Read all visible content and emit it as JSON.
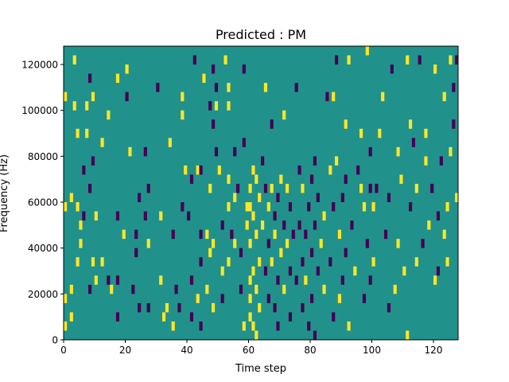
{
  "chart_data": {
    "type": "heatmap",
    "title": "Predicted : PM",
    "xlabel": "Time step",
    "ylabel": "Frequency (Hz)",
    "xlim": [
      0,
      128
    ],
    "ylim": [
      0,
      128000
    ],
    "x_ticks": [
      0,
      20,
      40,
      60,
      80,
      100,
      120
    ],
    "y_ticks": [
      0,
      20000,
      40000,
      60000,
      80000,
      100000,
      120000
    ],
    "x_tick_labels": [
      "0",
      "20",
      "40",
      "60",
      "80",
      "100",
      "120"
    ],
    "y_tick_labels": [
      "0",
      "20000",
      "40000",
      "60000",
      "80000",
      "100000",
      "120000"
    ],
    "grid": false,
    "legend": "none",
    "levels": [
      -1,
      0,
      1
    ],
    "colors": {
      "-1": "#440154",
      "0": "#21918c",
      "1": "#fde725"
    },
    "background_value": 0,
    "cell_height": 4000,
    "cells": [
      {
        "x": 0,
        "y": 4000,
        "v": 1
      },
      {
        "x": 0,
        "y": 16000,
        "v": 1
      },
      {
        "x": 0,
        "y": 56000,
        "v": 1
      },
      {
        "x": 0,
        "y": 104000,
        "v": 1
      },
      {
        "x": 2,
        "y": 8000,
        "v": 1
      },
      {
        "x": 2,
        "y": 20000,
        "v": 1
      },
      {
        "x": 2,
        "y": 60000,
        "v": 1
      },
      {
        "x": 3,
        "y": 120000,
        "v": 1
      },
      {
        "x": 3,
        "y": 100000,
        "v": 1
      },
      {
        "x": 4,
        "y": 32000,
        "v": 1
      },
      {
        "x": 4,
        "y": 88000,
        "v": 1
      },
      {
        "x": 4,
        "y": 56000,
        "v": 1
      },
      {
        "x": 5,
        "y": 48000,
        "v": 1
      },
      {
        "x": 5,
        "y": 40000,
        "v": 1
      },
      {
        "x": 6,
        "y": 72000,
        "v": -1
      },
      {
        "x": 6,
        "y": 52000,
        "v": -1
      },
      {
        "x": 7,
        "y": 100000,
        "v": 1
      },
      {
        "x": 7,
        "y": 88000,
        "v": 1
      },
      {
        "x": 8,
        "y": 112000,
        "v": -1
      },
      {
        "x": 8,
        "y": 20000,
        "v": -1
      },
      {
        "x": 8,
        "y": 64000,
        "v": -1
      },
      {
        "x": 9,
        "y": 76000,
        "v": -1
      },
      {
        "x": 9,
        "y": 32000,
        "v": 1
      },
      {
        "x": 9,
        "y": 104000,
        "v": 1
      },
      {
        "x": 10,
        "y": 24000,
        "v": 1
      },
      {
        "x": 10,
        "y": 52000,
        "v": 1
      },
      {
        "x": 12,
        "y": 32000,
        "v": 1
      },
      {
        "x": 12,
        "y": 84000,
        "v": 1
      },
      {
        "x": 14,
        "y": 24000,
        "v": -1
      },
      {
        "x": 14,
        "y": 96000,
        "v": 1
      },
      {
        "x": 15,
        "y": 20000,
        "v": 1
      },
      {
        "x": 17,
        "y": 52000,
        "v": -1
      },
      {
        "x": 17,
        "y": 8000,
        "v": -1
      },
      {
        "x": 17,
        "y": 24000,
        "v": -1
      },
      {
        "x": 17,
        "y": 112000,
        "v": 1
      },
      {
        "x": 19,
        "y": 44000,
        "v": 1
      },
      {
        "x": 20,
        "y": 116000,
        "v": 1
      },
      {
        "x": 20,
        "y": 104000,
        "v": -1
      },
      {
        "x": 21,
        "y": 80000,
        "v": 1
      },
      {
        "x": 22,
        "y": 20000,
        "v": -1
      },
      {
        "x": 23,
        "y": 44000,
        "v": -1
      },
      {
        "x": 23,
        "y": 36000,
        "v": -1
      },
      {
        "x": 24,
        "y": 60000,
        "v": -1
      },
      {
        "x": 24,
        "y": 12000,
        "v": -1
      },
      {
        "x": 26,
        "y": 80000,
        "v": -1
      },
      {
        "x": 26,
        "y": 52000,
        "v": -1
      },
      {
        "x": 27,
        "y": 40000,
        "v": 1
      },
      {
        "x": 27,
        "y": 12000,
        "v": -1
      },
      {
        "x": 27,
        "y": 64000,
        "v": -1
      },
      {
        "x": 30,
        "y": 108000,
        "v": -1
      },
      {
        "x": 31,
        "y": 52000,
        "v": 1
      },
      {
        "x": 31,
        "y": 24000,
        "v": 1
      },
      {
        "x": 32,
        "y": 8000,
        "v": 1
      },
      {
        "x": 33,
        "y": 12000,
        "v": 1
      },
      {
        "x": 34,
        "y": 84000,
        "v": 1
      },
      {
        "x": 35,
        "y": 44000,
        "v": -1
      },
      {
        "x": 35,
        "y": 4000,
        "v": 1
      },
      {
        "x": 36,
        "y": 20000,
        "v": -1
      },
      {
        "x": 37,
        "y": 12000,
        "v": -1
      },
      {
        "x": 38,
        "y": 104000,
        "v": 1
      },
      {
        "x": 38,
        "y": 56000,
        "v": -1
      },
      {
        "x": 38,
        "y": 96000,
        "v": 1
      },
      {
        "x": 39,
        "y": 72000,
        "v": 1
      },
      {
        "x": 40,
        "y": 52000,
        "v": -1
      },
      {
        "x": 41,
        "y": 8000,
        "v": -1
      },
      {
        "x": 41,
        "y": 24000,
        "v": -1
      },
      {
        "x": 41,
        "y": 68000,
        "v": -1
      },
      {
        "x": 42,
        "y": 120000,
        "v": -1
      },
      {
        "x": 43,
        "y": 72000,
        "v": 1
      },
      {
        "x": 43,
        "y": 16000,
        "v": 1
      },
      {
        "x": 44,
        "y": 44000,
        "v": -1
      },
      {
        "x": 44,
        "y": 32000,
        "v": -1
      },
      {
        "x": 44,
        "y": 4000,
        "v": -1
      },
      {
        "x": 44,
        "y": 72000,
        "v": -1
      },
      {
        "x": 45,
        "y": 112000,
        "v": 1
      },
      {
        "x": 46,
        "y": 44000,
        "v": 1
      },
      {
        "x": 46,
        "y": 20000,
        "v": 1
      },
      {
        "x": 47,
        "y": 100000,
        "v": -1
      },
      {
        "x": 47,
        "y": 36000,
        "v": 1
      },
      {
        "x": 47,
        "y": 64000,
        "v": 1
      },
      {
        "x": 48,
        "y": 116000,
        "v": -1
      },
      {
        "x": 48,
        "y": 12000,
        "v": 1
      },
      {
        "x": 48,
        "y": 40000,
        "v": 1
      },
      {
        "x": 48,
        "y": 92000,
        "v": -1
      },
      {
        "x": 49,
        "y": 108000,
        "v": -1
      },
      {
        "x": 49,
        "y": 80000,
        "v": -1
      },
      {
        "x": 49,
        "y": 100000,
        "v": 1
      },
      {
        "x": 50,
        "y": 72000,
        "v": 1
      },
      {
        "x": 51,
        "y": 28000,
        "v": 1
      },
      {
        "x": 51,
        "y": 48000,
        "v": -1
      },
      {
        "x": 51,
        "y": 16000,
        "v": -1
      },
      {
        "x": 52,
        "y": 120000,
        "v": 1
      },
      {
        "x": 53,
        "y": 32000,
        "v": 1
      },
      {
        "x": 53,
        "y": 56000,
        "v": 1
      },
      {
        "x": 53,
        "y": 108000,
        "v": 1
      },
      {
        "x": 53,
        "y": 100000,
        "v": 1
      },
      {
        "x": 53,
        "y": 68000,
        "v": 1
      },
      {
        "x": 54,
        "y": 44000,
        "v": -1
      },
      {
        "x": 55,
        "y": 80000,
        "v": -1
      },
      {
        "x": 55,
        "y": 60000,
        "v": 1
      },
      {
        "x": 55,
        "y": 40000,
        "v": 1
      },
      {
        "x": 56,
        "y": 64000,
        "v": -1
      },
      {
        "x": 57,
        "y": 36000,
        "v": -1
      },
      {
        "x": 57,
        "y": 20000,
        "v": -1
      },
      {
        "x": 58,
        "y": 116000,
        "v": -1
      },
      {
        "x": 58,
        "y": 4000,
        "v": 1
      },
      {
        "x": 58,
        "y": 84000,
        "v": -1
      },
      {
        "x": 59,
        "y": 56000,
        "v": 1
      },
      {
        "x": 59,
        "y": 48000,
        "v": 1
      },
      {
        "x": 60,
        "y": 64000,
        "v": 1
      },
      {
        "x": 60,
        "y": 56000,
        "v": 1
      },
      {
        "x": 60,
        "y": 40000,
        "v": 1
      },
      {
        "x": 60,
        "y": 24000,
        "v": 1
      },
      {
        "x": 60,
        "y": 16000,
        "v": 1
      },
      {
        "x": 60,
        "y": 8000,
        "v": 1
      },
      {
        "x": 61,
        "y": 72000,
        "v": 1
      },
      {
        "x": 61,
        "y": 52000,
        "v": 1
      },
      {
        "x": 61,
        "y": 28000,
        "v": 1
      },
      {
        "x": 61,
        "y": 4000,
        "v": 1
      },
      {
        "x": 62,
        "y": 68000,
        "v": 1
      },
      {
        "x": 62,
        "y": 44000,
        "v": 1
      },
      {
        "x": 62,
        "y": 20000,
        "v": 1
      },
      {
        "x": 62,
        "y": 0,
        "v": 1
      },
      {
        "x": 63,
        "y": 60000,
        "v": 1
      },
      {
        "x": 63,
        "y": 32000,
        "v": 1
      },
      {
        "x": 63,
        "y": 12000,
        "v": 1
      },
      {
        "x": 64,
        "y": 76000,
        "v": -1
      },
      {
        "x": 64,
        "y": 48000,
        "v": 1
      },
      {
        "x": 65,
        "y": 108000,
        "v": 1
      },
      {
        "x": 65,
        "y": 64000,
        "v": -1
      },
      {
        "x": 65,
        "y": 28000,
        "v": -1
      },
      {
        "x": 66,
        "y": 56000,
        "v": 1
      },
      {
        "x": 66,
        "y": 40000,
        "v": -1
      },
      {
        "x": 66,
        "y": 16000,
        "v": -1
      },
      {
        "x": 67,
        "y": 92000,
        "v": -1
      },
      {
        "x": 67,
        "y": 64000,
        "v": 1
      },
      {
        "x": 67,
        "y": 32000,
        "v": 1
      },
      {
        "x": 68,
        "y": 52000,
        "v": -1
      },
      {
        "x": 68,
        "y": 12000,
        "v": -1
      },
      {
        "x": 68,
        "y": 44000,
        "v": 1
      },
      {
        "x": 69,
        "y": 60000,
        "v": -1
      },
      {
        "x": 69,
        "y": 24000,
        "v": -1
      },
      {
        "x": 69,
        "y": 4000,
        "v": -1
      },
      {
        "x": 70,
        "y": 68000,
        "v": 1
      },
      {
        "x": 70,
        "y": 36000,
        "v": 1
      },
      {
        "x": 71,
        "y": 96000,
        "v": 1
      },
      {
        "x": 71,
        "y": 48000,
        "v": -1
      },
      {
        "x": 71,
        "y": 20000,
        "v": 1
      },
      {
        "x": 72,
        "y": 64000,
        "v": 1
      },
      {
        "x": 72,
        "y": 40000,
        "v": 1
      },
      {
        "x": 73,
        "y": 56000,
        "v": -1
      },
      {
        "x": 73,
        "y": 28000,
        "v": -1
      },
      {
        "x": 73,
        "y": 8000,
        "v": -1
      },
      {
        "x": 74,
        "y": 44000,
        "v": -1
      },
      {
        "x": 75,
        "y": 108000,
        "v": -1
      },
      {
        "x": 75,
        "y": 24000,
        "v": -1
      },
      {
        "x": 76,
        "y": 72000,
        "v": -1
      },
      {
        "x": 76,
        "y": 48000,
        "v": -1
      },
      {
        "x": 77,
        "y": 64000,
        "v": 1
      },
      {
        "x": 77,
        "y": 32000,
        "v": -1
      },
      {
        "x": 77,
        "y": 12000,
        "v": -1
      },
      {
        "x": 78,
        "y": 44000,
        "v": -1
      },
      {
        "x": 78,
        "y": 24000,
        "v": 1
      },
      {
        "x": 79,
        "y": 56000,
        "v": -1
      },
      {
        "x": 79,
        "y": 4000,
        "v": -1
      },
      {
        "x": 80,
        "y": 68000,
        "v": -1
      },
      {
        "x": 80,
        "y": 36000,
        "v": -1
      },
      {
        "x": 80,
        "y": 16000,
        "v": -1
      },
      {
        "x": 81,
        "y": 76000,
        "v": -1
      },
      {
        "x": 81,
        "y": 48000,
        "v": -1
      },
      {
        "x": 81,
        "y": 0,
        "v": -1
      },
      {
        "x": 82,
        "y": 60000,
        "v": -1
      },
      {
        "x": 82,
        "y": 28000,
        "v": -1
      },
      {
        "x": 83,
        "y": 40000,
        "v": 1
      },
      {
        "x": 84,
        "y": 52000,
        "v": 1
      },
      {
        "x": 84,
        "y": 20000,
        "v": 1
      },
      {
        "x": 85,
        "y": 104000,
        "v": -1
      },
      {
        "x": 86,
        "y": 72000,
        "v": 1
      },
      {
        "x": 86,
        "y": 32000,
        "v": -1
      },
      {
        "x": 87,
        "y": 104000,
        "v": 1
      },
      {
        "x": 87,
        "y": 56000,
        "v": -1
      },
      {
        "x": 87,
        "y": 8000,
        "v": -1
      },
      {
        "x": 88,
        "y": 120000,
        "v": -1
      },
      {
        "x": 88,
        "y": 76000,
        "v": 1
      },
      {
        "x": 89,
        "y": 44000,
        "v": 1
      },
      {
        "x": 89,
        "y": 16000,
        "v": 1
      },
      {
        "x": 90,
        "y": 60000,
        "v": -1
      },
      {
        "x": 90,
        "y": 24000,
        "v": -1
      },
      {
        "x": 91,
        "y": 92000,
        "v": 1
      },
      {
        "x": 91,
        "y": 36000,
        "v": -1
      },
      {
        "x": 91,
        "y": 68000,
        "v": -1
      },
      {
        "x": 92,
        "y": 120000,
        "v": 1
      },
      {
        "x": 92,
        "y": 4000,
        "v": 1
      },
      {
        "x": 93,
        "y": 48000,
        "v": -1
      },
      {
        "x": 94,
        "y": 28000,
        "v": 1
      },
      {
        "x": 95,
        "y": 72000,
        "v": -1
      },
      {
        "x": 96,
        "y": 64000,
        "v": 1
      },
      {
        "x": 96,
        "y": 88000,
        "v": 1
      },
      {
        "x": 97,
        "y": 56000,
        "v": 1
      },
      {
        "x": 97,
        "y": 16000,
        "v": -1
      },
      {
        "x": 98,
        "y": 124000,
        "v": 1
      },
      {
        "x": 98,
        "y": 40000,
        "v": -1
      },
      {
        "x": 99,
        "y": 64000,
        "v": -1
      },
      {
        "x": 99,
        "y": 24000,
        "v": -1
      },
      {
        "x": 99,
        "y": 80000,
        "v": -1
      },
      {
        "x": 100,
        "y": 56000,
        "v": 1
      },
      {
        "x": 100,
        "y": 32000,
        "v": 1
      },
      {
        "x": 101,
        "y": 64000,
        "v": -1
      },
      {
        "x": 102,
        "y": 88000,
        "v": 1
      },
      {
        "x": 103,
        "y": 104000,
        "v": 1
      },
      {
        "x": 104,
        "y": 44000,
        "v": -1
      },
      {
        "x": 105,
        "y": 60000,
        "v": -1
      },
      {
        "x": 105,
        "y": 12000,
        "v": -1
      },
      {
        "x": 106,
        "y": 116000,
        "v": -1
      },
      {
        "x": 107,
        "y": 20000,
        "v": 1
      },
      {
        "x": 108,
        "y": 80000,
        "v": 1
      },
      {
        "x": 108,
        "y": 40000,
        "v": 1
      },
      {
        "x": 109,
        "y": 68000,
        "v": 1
      },
      {
        "x": 110,
        "y": 28000,
        "v": 1
      },
      {
        "x": 111,
        "y": 120000,
        "v": 1
      },
      {
        "x": 111,
        "y": 0,
        "v": 1
      },
      {
        "x": 112,
        "y": 92000,
        "v": 1
      },
      {
        "x": 112,
        "y": 56000,
        "v": -1
      },
      {
        "x": 113,
        "y": 84000,
        "v": -1
      },
      {
        "x": 114,
        "y": 32000,
        "v": 1
      },
      {
        "x": 114,
        "y": 64000,
        "v": 1
      },
      {
        "x": 115,
        "y": 120000,
        "v": -1
      },
      {
        "x": 116,
        "y": 40000,
        "v": -1
      },
      {
        "x": 117,
        "y": 76000,
        "v": 1
      },
      {
        "x": 117,
        "y": 88000,
        "v": 1
      },
      {
        "x": 118,
        "y": 48000,
        "v": 1
      },
      {
        "x": 119,
        "y": 64000,
        "v": -1
      },
      {
        "x": 120,
        "y": 116000,
        "v": 1
      },
      {
        "x": 120,
        "y": 24000,
        "v": 1
      },
      {
        "x": 121,
        "y": 52000,
        "v": -1
      },
      {
        "x": 121,
        "y": 28000,
        "v": -1
      },
      {
        "x": 122,
        "y": 76000,
        "v": -1
      },
      {
        "x": 123,
        "y": 104000,
        "v": 1
      },
      {
        "x": 123,
        "y": 44000,
        "v": 1
      },
      {
        "x": 124,
        "y": 56000,
        "v": 1
      },
      {
        "x": 124,
        "y": 32000,
        "v": 1
      },
      {
        "x": 125,
        "y": 120000,
        "v": 1
      },
      {
        "x": 125,
        "y": 80000,
        "v": 1
      },
      {
        "x": 126,
        "y": 92000,
        "v": -1
      },
      {
        "x": 126,
        "y": 108000,
        "v": -1
      },
      {
        "x": 127,
        "y": 120000,
        "v": -1
      },
      {
        "x": 127,
        "y": 60000,
        "v": 1
      }
    ]
  }
}
